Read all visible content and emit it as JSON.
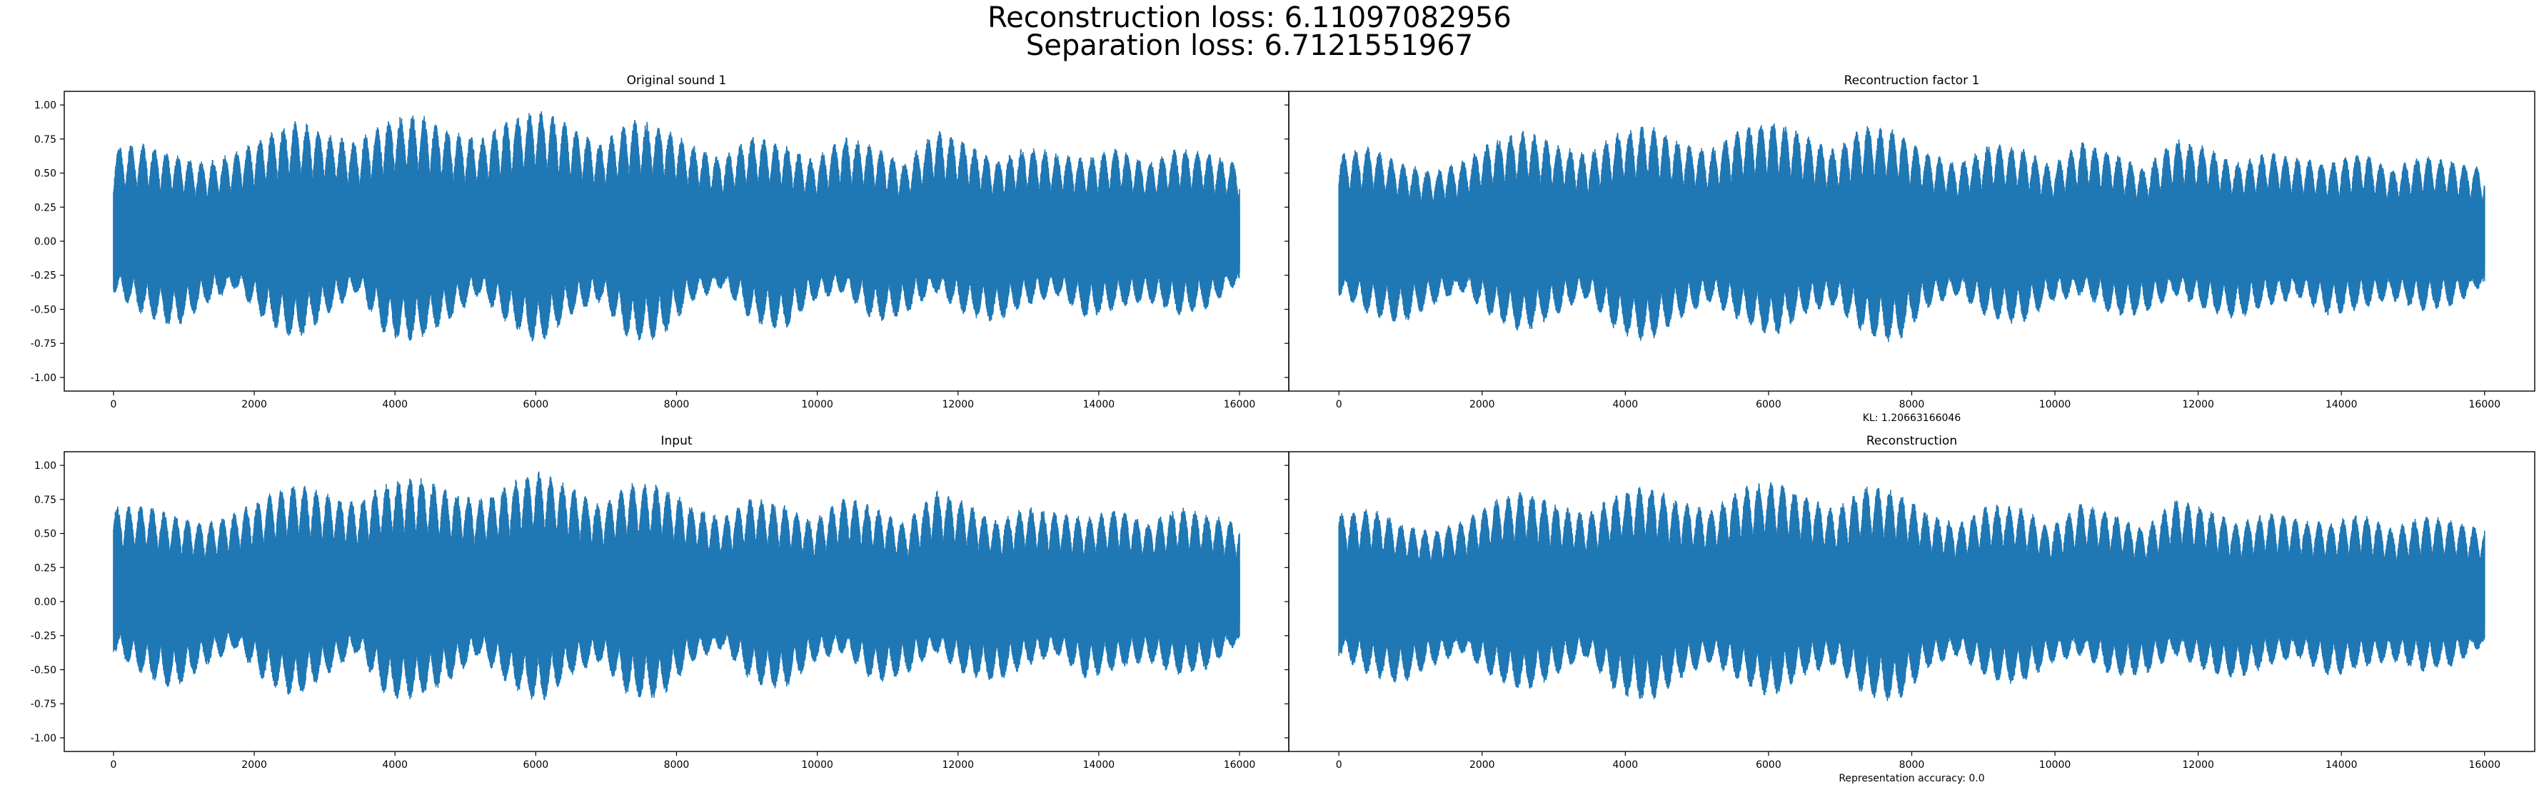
{
  "figure": {
    "suptitle_line1": "Reconstruction loss: 6.11097082956",
    "suptitle_line2": "Separation loss: 6.7121551967"
  },
  "chart_data": [
    {
      "type": "line",
      "title": "Original sound 1",
      "xlabel": "",
      "ylabel": "",
      "xlim": [
        -700,
        16700
      ],
      "ylim": [
        -1.1,
        1.1
      ],
      "xticks": [
        0,
        2000,
        4000,
        6000,
        8000,
        10000,
        12000,
        14000,
        16000
      ],
      "yticks": [
        -1.0,
        -0.75,
        -0.5,
        -0.25,
        0.0,
        0.25,
        0.5,
        0.75,
        1.0
      ],
      "color": "#1f77b4",
      "n_samples": 16000,
      "envelope_upper": [
        0.7,
        0.72,
        0.64,
        0.58,
        0.66,
        0.78,
        0.9,
        0.8,
        0.74,
        0.9,
        0.95,
        0.82,
        0.76,
        0.9,
        0.98,
        0.86,
        0.72,
        0.9,
        0.86,
        0.72,
        0.62,
        0.78,
        0.72,
        0.6,
        0.78,
        0.7,
        0.58,
        0.82,
        0.74,
        0.6,
        0.7,
        0.66,
        0.62,
        0.7,
        0.58,
        0.7,
        0.65,
        0.58
      ],
      "envelope_lower": [
        -0.38,
        -0.55,
        -0.65,
        -0.48,
        -0.35,
        -0.6,
        -0.75,
        -0.55,
        -0.38,
        -0.72,
        -0.74,
        -0.6,
        -0.4,
        -0.62,
        -0.78,
        -0.55,
        -0.45,
        -0.75,
        -0.72,
        -0.45,
        -0.35,
        -0.6,
        -0.67,
        -0.45,
        -0.38,
        -0.6,
        -0.55,
        -0.38,
        -0.55,
        -0.6,
        -0.48,
        -0.4,
        -0.58,
        -0.5,
        -0.45,
        -0.55,
        -0.5,
        -0.3
      ],
      "core_amplitude": 0.28
    },
    {
      "type": "line",
      "title": "Recontruction factor 1",
      "xlabel": "KL: 1.20663166046",
      "ylabel": "",
      "xlim": [
        -700,
        16700
      ],
      "ylim": [
        -1.1,
        1.1
      ],
      "xticks": [
        0,
        2000,
        4000,
        6000,
        8000,
        10000,
        12000,
        14000,
        16000
      ],
      "yticks": [
        -1.0,
        -0.75,
        -0.5,
        -0.25,
        0.0,
        0.25,
        0.5,
        0.75,
        1.0
      ],
      "color": "#1f77b4",
      "n_samples": 16000,
      "envelope_upper": [
        0.65,
        0.7,
        0.58,
        0.52,
        0.6,
        0.75,
        0.82,
        0.72,
        0.65,
        0.8,
        0.86,
        0.74,
        0.68,
        0.84,
        0.9,
        0.8,
        0.68,
        0.86,
        0.82,
        0.66,
        0.58,
        0.72,
        0.7,
        0.56,
        0.74,
        0.66,
        0.54,
        0.76,
        0.7,
        0.58,
        0.66,
        0.62,
        0.58,
        0.66,
        0.54,
        0.64,
        0.6,
        0.54
      ],
      "envelope_lower": [
        -0.4,
        -0.55,
        -0.62,
        -0.48,
        -0.38,
        -0.58,
        -0.68,
        -0.55,
        -0.42,
        -0.68,
        -0.75,
        -0.58,
        -0.45,
        -0.6,
        -0.72,
        -0.55,
        -0.48,
        -0.7,
        -0.76,
        -0.5,
        -0.4,
        -0.58,
        -0.62,
        -0.46,
        -0.4,
        -0.56,
        -0.55,
        -0.4,
        -0.52,
        -0.58,
        -0.48,
        -0.42,
        -0.56,
        -0.5,
        -0.44,
        -0.52,
        -0.48,
        -0.32
      ],
      "core_amplitude": 0.3
    },
    {
      "type": "line",
      "title": "Input",
      "xlabel": "",
      "ylabel": "",
      "xlim": [
        -700,
        16700
      ],
      "ylim": [
        -1.1,
        1.1
      ],
      "xticks": [
        0,
        2000,
        4000,
        6000,
        8000,
        10000,
        12000,
        14000,
        16000
      ],
      "yticks": [
        -1.0,
        -0.75,
        -0.5,
        -0.25,
        0.0,
        0.25,
        0.5,
        0.75,
        1.0
      ],
      "color": "#1f77b4",
      "n_samples": 16000,
      "envelope_upper": [
        0.7,
        0.72,
        0.64,
        0.58,
        0.66,
        0.78,
        0.88,
        0.8,
        0.74,
        0.88,
        0.93,
        0.82,
        0.76,
        0.88,
        0.96,
        0.86,
        0.72,
        0.88,
        0.86,
        0.72,
        0.62,
        0.78,
        0.72,
        0.6,
        0.78,
        0.7,
        0.58,
        0.82,
        0.74,
        0.6,
        0.7,
        0.66,
        0.62,
        0.7,
        0.58,
        0.7,
        0.65,
        0.58
      ],
      "envelope_lower": [
        -0.38,
        -0.55,
        -0.65,
        -0.48,
        -0.35,
        -0.6,
        -0.72,
        -0.55,
        -0.38,
        -0.72,
        -0.72,
        -0.6,
        -0.4,
        -0.62,
        -0.76,
        -0.55,
        -0.45,
        -0.72,
        -0.72,
        -0.45,
        -0.35,
        -0.6,
        -0.66,
        -0.45,
        -0.38,
        -0.6,
        -0.55,
        -0.38,
        -0.55,
        -0.6,
        -0.48,
        -0.4,
        -0.58,
        -0.5,
        -0.45,
        -0.55,
        -0.5,
        -0.3
      ],
      "core_amplitude": 0.28
    },
    {
      "type": "line",
      "title": "Reconstruction",
      "xlabel": "Representation accuracy: 0.0",
      "ylabel": "",
      "xlim": [
        -700,
        16700
      ],
      "ylim": [
        -1.1,
        1.1
      ],
      "xticks": [
        0,
        2000,
        4000,
        6000,
        8000,
        10000,
        12000,
        14000,
        16000
      ],
      "yticks": [
        -1.0,
        -0.75,
        -0.5,
        -0.25,
        0.0,
        0.25,
        0.5,
        0.75,
        1.0
      ],
      "color": "#1f77b4",
      "n_samples": 16000,
      "envelope_upper": [
        0.65,
        0.7,
        0.58,
        0.52,
        0.6,
        0.75,
        0.82,
        0.72,
        0.65,
        0.8,
        0.86,
        0.74,
        0.68,
        0.84,
        0.9,
        0.8,
        0.68,
        0.86,
        0.82,
        0.66,
        0.58,
        0.72,
        0.7,
        0.56,
        0.74,
        0.66,
        0.54,
        0.76,
        0.7,
        0.58,
        0.66,
        0.62,
        0.58,
        0.66,
        0.54,
        0.64,
        0.6,
        0.54
      ],
      "envelope_lower": [
        -0.4,
        -0.55,
        -0.62,
        -0.48,
        -0.38,
        -0.58,
        -0.68,
        -0.55,
        -0.42,
        -0.68,
        -0.75,
        -0.58,
        -0.45,
        -0.6,
        -0.72,
        -0.55,
        -0.48,
        -0.7,
        -0.76,
        -0.5,
        -0.4,
        -0.58,
        -0.62,
        -0.46,
        -0.4,
        -0.56,
        -0.55,
        -0.4,
        -0.52,
        -0.58,
        -0.48,
        -0.42,
        -0.56,
        -0.5,
        -0.44,
        -0.52,
        -0.48,
        -0.32
      ],
      "core_amplitude": 0.3
    }
  ]
}
